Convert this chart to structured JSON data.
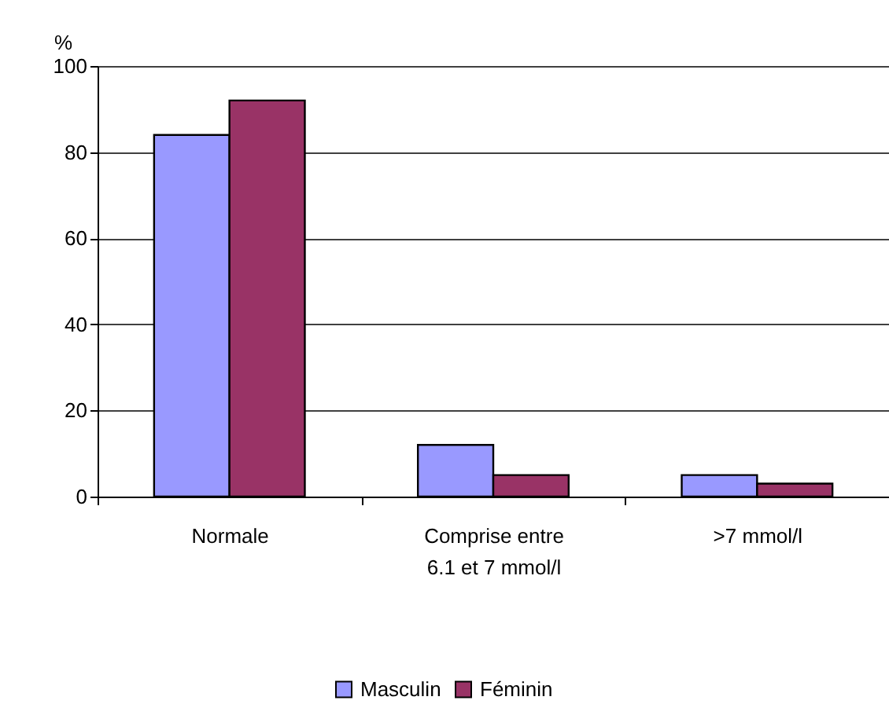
{
  "chart_data": {
    "type": "bar",
    "ylabel": "%",
    "categories": [
      "Normale",
      "Comprise entre 6.1 et 7 mmol/l",
      ">7 mmol/l"
    ],
    "series": [
      {
        "name": "Masculin",
        "color": "#9999ff",
        "values": [
          84,
          12,
          5
        ]
      },
      {
        "name": "Féminin",
        "color": "#993366",
        "values": [
          92,
          5,
          3
        ]
      }
    ],
    "ylim": [
      0,
      100
    ],
    "yticks": [
      0,
      20,
      40,
      60,
      80,
      100
    ],
    "grid": "y",
    "legend": "bottom"
  }
}
